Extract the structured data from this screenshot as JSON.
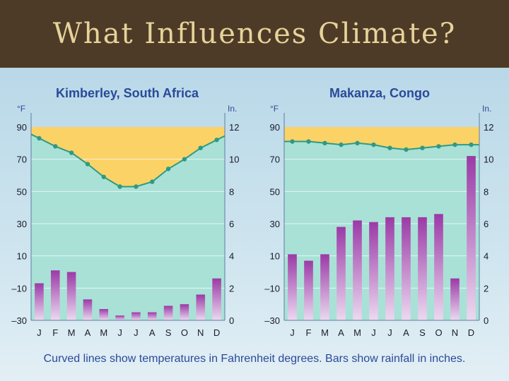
{
  "slide": {
    "title": "What Influences Climate?",
    "caption": "Curved lines show temperatures in Fahrenheit degrees. Bars show rainfall in inches."
  },
  "colors": {
    "temp_fill": "#fbd266",
    "plot_bg": "#a9e1d7",
    "line": "#2e9a86",
    "bar": "#9b3aa6"
  },
  "chart_data": [
    {
      "type": "bar+line",
      "title": "Kimberley, South Africa",
      "categories": [
        "J",
        "F",
        "M",
        "A",
        "M",
        "J",
        "J",
        "A",
        "S",
        "O",
        "N",
        "D"
      ],
      "y_left_label": "°F",
      "y_right_label": "In.",
      "y_left_ticks": [
        "90",
        "70",
        "50",
        "30",
        "10",
        "–10",
        "–30"
      ],
      "y_right_ticks": [
        "12",
        "10",
        "8",
        "6",
        "4",
        "2",
        "0"
      ],
      "ylim_left": [
        -30,
        90
      ],
      "ylim_right": [
        0,
        12
      ],
      "temperature_F": [
        83,
        78,
        74,
        67,
        59,
        53,
        53,
        56,
        64,
        70,
        77,
        82
      ],
      "rainfall_in": [
        2.3,
        3.1,
        3.0,
        1.3,
        0.7,
        0.3,
        0.5,
        0.5,
        0.9,
        1.0,
        1.6,
        2.6
      ]
    },
    {
      "type": "bar+line",
      "title": "Makanza, Congo",
      "categories": [
        "J",
        "F",
        "M",
        "A",
        "M",
        "J",
        "J",
        "A",
        "S",
        "O",
        "N",
        "D"
      ],
      "y_left_label": "°F",
      "y_right_label": "In.",
      "y_left_ticks": [
        "90",
        "70",
        "50",
        "30",
        "10",
        "–10",
        "–30"
      ],
      "y_right_ticks": [
        "12",
        "10",
        "8",
        "6",
        "4",
        "2",
        "0"
      ],
      "ylim_left": [
        -30,
        90
      ],
      "ylim_right": [
        0,
        12
      ],
      "temperature_F": [
        81,
        81,
        80,
        79,
        80,
        79,
        77,
        76,
        77,
        78,
        79,
        79
      ],
      "rainfall_in": [
        4.1,
        3.7,
        4.1,
        5.8,
        6.2,
        6.1,
        6.4,
        6.4,
        6.4,
        6.6,
        2.6,
        10.2
      ]
    }
  ]
}
